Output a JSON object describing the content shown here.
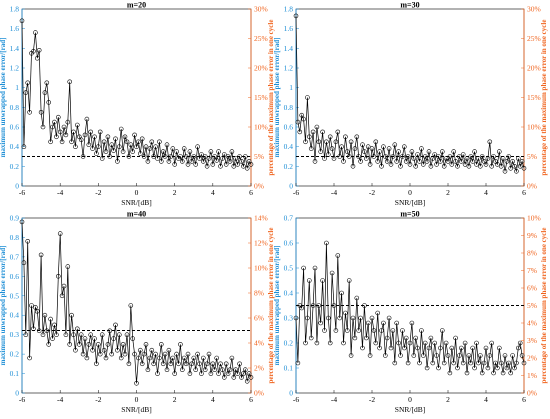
{
  "colors": {
    "left_axis": "#1f8fd6",
    "right_axis": "#f0641e",
    "series": "#000000",
    "threshold": "#000000"
  },
  "chart_data": [
    {
      "type": "line",
      "title": "m=20",
      "xlabel": "SNR/[dB]",
      "ylabel": "maximum unwrapped phase error/[rad]",
      "ylabel_right": "percentage of the maximum phase error in one cycle",
      "xlim": [
        -6,
        6
      ],
      "ylim": [
        0,
        1.8
      ],
      "ylim_right": [
        0,
        30
      ],
      "x_ticks": [
        "-6",
        "-4",
        "-2",
        "0",
        "2",
        "4",
        "6"
      ],
      "y_ticks": [
        "0",
        "0.2",
        "0.4",
        "0.6",
        "0.8",
        "1",
        "1.2",
        "1.4",
        "1.6",
        "1.8"
      ],
      "y_right_ticks": [
        "0%",
        "5%",
        "10%",
        "15%",
        "20%",
        "25%",
        "30%"
      ],
      "threshold_percent": 5,
      "grid": false,
      "x": [
        -6.0,
        -5.9,
        -5.8,
        -5.7,
        -5.6,
        -5.5,
        -5.4,
        -5.3,
        -5.2,
        -5.1,
        -5.0,
        -4.9,
        -4.8,
        -4.7,
        -4.6,
        -4.5,
        -4.4,
        -4.3,
        -4.2,
        -4.1,
        -4.0,
        -3.9,
        -3.8,
        -3.7,
        -3.6,
        -3.5,
        -3.4,
        -3.3,
        -3.2,
        -3.1,
        -3.0,
        -2.9,
        -2.8,
        -2.7,
        -2.6,
        -2.5,
        -2.4,
        -2.3,
        -2.2,
        -2.1,
        -2.0,
        -1.9,
        -1.8,
        -1.7,
        -1.6,
        -1.5,
        -1.4,
        -1.3,
        -1.2,
        -1.1,
        -1.0,
        -0.9,
        -0.8,
        -0.7,
        -0.6,
        -0.5,
        -0.4,
        -0.3,
        -0.2,
        -0.1,
        0.0,
        0.1,
        0.2,
        0.3,
        0.4,
        0.5,
        0.6,
        0.7,
        0.8,
        0.9,
        1.0,
        1.1,
        1.2,
        1.3,
        1.4,
        1.5,
        1.6,
        1.7,
        1.8,
        1.9,
        2.0,
        2.1,
        2.2,
        2.3,
        2.4,
        2.5,
        2.6,
        2.7,
        2.8,
        2.9,
        3.0,
        3.1,
        3.2,
        3.3,
        3.4,
        3.5,
        3.6,
        3.7,
        3.8,
        3.9,
        4.0,
        4.1,
        4.2,
        4.3,
        4.4,
        4.5,
        4.6,
        4.7,
        4.8,
        4.9,
        5.0,
        5.1,
        5.2,
        5.3,
        5.4,
        5.5,
        5.6,
        5.7,
        5.8,
        5.9,
        6.0
      ],
      "y": [
        1.68,
        0.4,
        0.95,
        1.05,
        0.75,
        1.35,
        1.37,
        1.56,
        1.3,
        1.38,
        0.75,
        0.6,
        0.95,
        1.05,
        0.85,
        0.45,
        0.6,
        0.65,
        0.5,
        0.7,
        0.55,
        0.45,
        0.6,
        0.52,
        0.65,
        1.06,
        0.45,
        0.55,
        0.4,
        0.62,
        0.5,
        0.47,
        0.3,
        0.52,
        0.68,
        0.42,
        0.55,
        0.38,
        0.5,
        0.33,
        0.4,
        0.55,
        0.28,
        0.45,
        0.35,
        0.5,
        0.3,
        0.42,
        0.36,
        0.48,
        0.25,
        0.4,
        0.58,
        0.35,
        0.5,
        0.45,
        0.3,
        0.42,
        0.35,
        0.52,
        0.4,
        0.45,
        0.33,
        0.48,
        0.3,
        0.4,
        0.25,
        0.38,
        0.45,
        0.3,
        0.4,
        0.28,
        0.45,
        0.25,
        0.35,
        0.3,
        0.42,
        0.25,
        0.3,
        0.38,
        0.22,
        0.35,
        0.28,
        0.3,
        0.25,
        0.38,
        0.3,
        0.22,
        0.35,
        0.25,
        0.3,
        0.22,
        0.4,
        0.28,
        0.32,
        0.25,
        0.3,
        0.2,
        0.28,
        0.35,
        0.22,
        0.3,
        0.26,
        0.35,
        0.2,
        0.28,
        0.32,
        0.22,
        0.3,
        0.25,
        0.35,
        0.2,
        0.28,
        0.22,
        0.3,
        0.25,
        0.2,
        0.3,
        0.18,
        0.25,
        0.22
      ]
    },
    {
      "type": "line",
      "title": "m=30",
      "xlabel": "SNR/[dB]",
      "ylabel": "maximum unwrapped phase error/[rad]",
      "ylabel_right": "percentage of the maximum phase error in one cycle",
      "xlim": [
        -6,
        6
      ],
      "ylim": [
        0,
        1.8
      ],
      "ylim_right": [
        0,
        30
      ],
      "x_ticks": [
        "-6",
        "-4",
        "-2",
        "0",
        "2",
        "4",
        "6"
      ],
      "y_ticks": [
        "0",
        "0.2",
        "0.4",
        "0.6",
        "0.8",
        "1",
        "1.2",
        "1.4",
        "1.6",
        "1.8"
      ],
      "y_right_ticks": [
        "0%",
        "5%",
        "10%",
        "15%",
        "20%",
        "25%",
        "30%"
      ],
      "threshold_percent": 5,
      "grid": false,
      "x": [
        -6.0,
        -5.9,
        -5.8,
        -5.7,
        -5.6,
        -5.5,
        -5.4,
        -5.3,
        -5.2,
        -5.1,
        -5.0,
        -4.9,
        -4.8,
        -4.7,
        -4.6,
        -4.5,
        -4.4,
        -4.3,
        -4.2,
        -4.1,
        -4.0,
        -3.9,
        -3.8,
        -3.7,
        -3.6,
        -3.5,
        -3.4,
        -3.3,
        -3.2,
        -3.1,
        -3.0,
        -2.9,
        -2.8,
        -2.7,
        -2.6,
        -2.5,
        -2.4,
        -2.3,
        -2.2,
        -2.1,
        -2.0,
        -1.9,
        -1.8,
        -1.7,
        -1.6,
        -1.5,
        -1.4,
        -1.3,
        -1.2,
        -1.1,
        -1.0,
        -0.9,
        -0.8,
        -0.7,
        -0.6,
        -0.5,
        -0.4,
        -0.3,
        -0.2,
        -0.1,
        0.0,
        0.1,
        0.2,
        0.3,
        0.4,
        0.5,
        0.6,
        0.7,
        0.8,
        0.9,
        1.0,
        1.1,
        1.2,
        1.3,
        1.4,
        1.5,
        1.6,
        1.7,
        1.8,
        1.9,
        2.0,
        2.1,
        2.2,
        2.3,
        2.4,
        2.5,
        2.6,
        2.7,
        2.8,
        2.9,
        3.0,
        3.1,
        3.2,
        3.3,
        3.4,
        3.5,
        3.6,
        3.7,
        3.8,
        3.9,
        4.0,
        4.1,
        4.2,
        4.3,
        4.4,
        4.5,
        4.6,
        4.7,
        4.8,
        4.9,
        5.0,
        5.1,
        5.2,
        5.3,
        5.4,
        5.5,
        5.6,
        5.7,
        5.8,
        5.9,
        6.0
      ],
      "y": [
        1.73,
        0.65,
        0.55,
        0.72,
        0.68,
        0.45,
        0.9,
        0.5,
        0.38,
        0.55,
        0.25,
        0.6,
        0.45,
        0.35,
        0.55,
        0.28,
        0.45,
        0.32,
        0.5,
        0.38,
        0.28,
        0.45,
        0.55,
        0.3,
        0.4,
        0.25,
        0.5,
        0.35,
        0.3,
        0.45,
        0.2,
        0.38,
        0.5,
        0.3,
        0.25,
        0.42,
        0.35,
        0.28,
        0.4,
        0.22,
        0.38,
        0.3,
        0.45,
        0.25,
        0.35,
        0.2,
        0.4,
        0.3,
        0.25,
        0.38,
        0.22,
        0.3,
        0.42,
        0.25,
        0.35,
        0.2,
        0.3,
        0.4,
        0.25,
        0.3,
        0.22,
        0.35,
        0.28,
        0.2,
        0.32,
        0.25,
        0.38,
        0.22,
        0.3,
        0.25,
        0.35,
        0.2,
        0.28,
        0.32,
        0.22,
        0.3,
        0.25,
        0.35,
        0.2,
        0.28,
        0.25,
        0.3,
        0.22,
        0.35,
        0.25,
        0.2,
        0.3,
        0.25,
        0.32,
        0.22,
        0.28,
        0.2,
        0.3,
        0.25,
        0.35,
        0.22,
        0.28,
        0.2,
        0.3,
        0.25,
        0.22,
        0.28,
        0.45,
        0.2,
        0.3,
        0.25,
        0.22,
        0.35,
        0.2,
        0.28,
        0.15,
        0.25,
        0.3,
        0.18,
        0.25,
        0.2,
        0.15,
        0.28,
        0.2,
        0.25,
        0.18
      ]
    },
    {
      "type": "line",
      "title": "m=40",
      "xlabel": "SNR/[dB]",
      "ylabel": "maximum unwrapped phase error/[rad]",
      "ylabel_right": "percentage of the maximum phase error in one cycle",
      "xlim": [
        -6,
        6
      ],
      "ylim": [
        0,
        0.9
      ],
      "ylim_right": [
        0,
        14
      ],
      "x_ticks": [
        "-6",
        "-4",
        "-2",
        "0",
        "2",
        "4",
        "6"
      ],
      "y_ticks": [
        "0",
        "0.1",
        "0.2",
        "0.3",
        "0.4",
        "0.5",
        "0.6",
        "0.7",
        "0.8",
        "0.9"
      ],
      "y_right_ticks": [
        "0%",
        "2%",
        "4%",
        "6%",
        "8%",
        "10%",
        "12%",
        "14%"
      ],
      "threshold_percent": 5,
      "grid": false,
      "x": [
        -6.0,
        -5.9,
        -5.8,
        -5.7,
        -5.6,
        -5.5,
        -5.4,
        -5.3,
        -5.2,
        -5.1,
        -5.0,
        -4.9,
        -4.8,
        -4.7,
        -4.6,
        -4.5,
        -4.4,
        -4.3,
        -4.2,
        -4.1,
        -4.0,
        -3.9,
        -3.8,
        -3.7,
        -3.6,
        -3.5,
        -3.4,
        -3.3,
        -3.2,
        -3.1,
        -3.0,
        -2.9,
        -2.8,
        -2.7,
        -2.6,
        -2.5,
        -2.4,
        -2.3,
        -2.2,
        -2.1,
        -2.0,
        -1.9,
        -1.8,
        -1.7,
        -1.6,
        -1.5,
        -1.4,
        -1.3,
        -1.2,
        -1.1,
        -1.0,
        -0.9,
        -0.8,
        -0.7,
        -0.6,
        -0.5,
        -0.4,
        -0.3,
        -0.2,
        -0.1,
        0.0,
        0.1,
        0.2,
        0.3,
        0.4,
        0.5,
        0.6,
        0.7,
        0.8,
        0.9,
        1.0,
        1.1,
        1.2,
        1.3,
        1.4,
        1.5,
        1.6,
        1.7,
        1.8,
        1.9,
        2.0,
        2.1,
        2.2,
        2.3,
        2.4,
        2.5,
        2.6,
        2.7,
        2.8,
        2.9,
        3.0,
        3.1,
        3.2,
        3.3,
        3.4,
        3.5,
        3.6,
        3.7,
        3.8,
        3.9,
        4.0,
        4.1,
        4.2,
        4.3,
        4.4,
        4.5,
        4.6,
        4.7,
        4.8,
        4.9,
        5.0,
        5.1,
        5.2,
        5.3,
        5.4,
        5.5,
        5.6,
        5.7,
        5.8,
        5.9,
        6.0
      ],
      "y": [
        0.88,
        0.67,
        0.3,
        0.78,
        0.18,
        0.45,
        0.33,
        0.44,
        0.42,
        0.32,
        0.71,
        0.3,
        0.4,
        0.32,
        0.25,
        0.38,
        0.28,
        0.35,
        0.3,
        0.6,
        0.82,
        0.5,
        0.55,
        0.3,
        0.65,
        0.25,
        0.4,
        0.3,
        0.22,
        0.33,
        0.25,
        0.3,
        0.2,
        0.28,
        0.18,
        0.25,
        0.3,
        0.22,
        0.28,
        0.15,
        0.25,
        0.2,
        0.3,
        0.22,
        0.18,
        0.25,
        0.32,
        0.2,
        0.28,
        0.35,
        0.22,
        0.3,
        0.18,
        0.25,
        0.2,
        0.3,
        0.15,
        0.45,
        0.28,
        0.2,
        0.05,
        0.18,
        0.22,
        0.15,
        0.2,
        0.25,
        0.12,
        0.18,
        0.22,
        0.15,
        0.2,
        0.1,
        0.18,
        0.25,
        0.15,
        0.2,
        0.12,
        0.22,
        0.15,
        0.18,
        0.1,
        0.2,
        0.15,
        0.25,
        0.12,
        0.18,
        0.15,
        0.2,
        0.1,
        0.15,
        0.18,
        0.12,
        0.2,
        0.15,
        0.1,
        0.18,
        0.12,
        0.15,
        0.2,
        0.1,
        0.15,
        0.12,
        0.18,
        0.1,
        0.15,
        0.12,
        0.08,
        0.15,
        0.1,
        0.12,
        0.18,
        0.08,
        0.12,
        0.1,
        0.15,
        0.08,
        0.1,
        0.12,
        0.06,
        0.1,
        0.08
      ]
    },
    {
      "type": "line",
      "title": "m=50",
      "xlabel": "SNR/[dB]",
      "ylabel": "maximum unwrapped phase error/[rad]",
      "ylabel_right": "percentage of the maximum phase error in one cycle",
      "xlim": [
        -6,
        6
      ],
      "ylim": [
        0,
        0.7
      ],
      "ylim_right": [
        0,
        10
      ],
      "x_ticks": [
        "-6",
        "-4",
        "-2",
        "0",
        "2",
        "4",
        "6"
      ],
      "y_ticks": [
        "0",
        "0.1",
        "0.2",
        "0.3",
        "0.4",
        "0.5",
        "0.6",
        "0.7"
      ],
      "y_right_ticks": [
        "0%",
        "1%",
        "2%",
        "3%",
        "4%",
        "5%",
        "6%",
        "7%",
        "8%",
        "9%",
        "10%"
      ],
      "threshold_percent": 5,
      "grid": false,
      "x": [
        -6.0,
        -5.9,
        -5.8,
        -5.7,
        -5.6,
        -5.5,
        -5.4,
        -5.3,
        -5.2,
        -5.1,
        -5.0,
        -4.9,
        -4.8,
        -4.7,
        -4.6,
        -4.5,
        -4.4,
        -4.3,
        -4.2,
        -4.1,
        -4.0,
        -3.9,
        -3.8,
        -3.7,
        -3.6,
        -3.5,
        -3.4,
        -3.3,
        -3.2,
        -3.1,
        -3.0,
        -2.9,
        -2.8,
        -2.7,
        -2.6,
        -2.5,
        -2.4,
        -2.3,
        -2.2,
        -2.1,
        -2.0,
        -1.9,
        -1.8,
        -1.7,
        -1.6,
        -1.5,
        -1.4,
        -1.3,
        -1.2,
        -1.1,
        -1.0,
        -0.9,
        -0.8,
        -0.7,
        -0.6,
        -0.5,
        -0.4,
        -0.3,
        -0.2,
        -0.1,
        0.0,
        0.1,
        0.2,
        0.3,
        0.4,
        0.5,
        0.6,
        0.7,
        0.8,
        0.9,
        1.0,
        1.1,
        1.2,
        1.3,
        1.4,
        1.5,
        1.6,
        1.7,
        1.8,
        1.9,
        2.0,
        2.1,
        2.2,
        2.3,
        2.4,
        2.5,
        2.6,
        2.7,
        2.8,
        2.9,
        3.0,
        3.1,
        3.2,
        3.3,
        3.4,
        3.5,
        3.6,
        3.7,
        3.8,
        3.9,
        4.0,
        4.1,
        4.2,
        4.3,
        4.4,
        4.5,
        4.6,
        4.7,
        4.8,
        4.9,
        5.0,
        5.1,
        5.2,
        5.3,
        5.4,
        5.5,
        5.6,
        5.7,
        5.8,
        5.9,
        6.0
      ],
      "y": [
        0.3,
        0.12,
        0.35,
        0.34,
        0.5,
        0.2,
        0.3,
        0.45,
        0.22,
        0.35,
        0.5,
        0.2,
        0.35,
        0.28,
        0.45,
        0.25,
        0.6,
        0.3,
        0.2,
        0.48,
        0.35,
        0.25,
        0.55,
        0.3,
        0.4,
        0.2,
        0.32,
        0.25,
        0.45,
        0.15,
        0.3,
        0.22,
        0.38,
        0.25,
        0.3,
        0.18,
        0.35,
        0.22,
        0.28,
        0.15,
        0.3,
        0.25,
        0.2,
        0.32,
        0.18,
        0.25,
        0.28,
        0.15,
        0.22,
        0.3,
        0.18,
        0.25,
        0.12,
        0.28,
        0.2,
        0.15,
        0.25,
        0.18,
        0.22,
        0.12,
        0.2,
        0.28,
        0.15,
        0.22,
        0.18,
        0.12,
        0.25,
        0.15,
        0.2,
        0.1,
        0.18,
        0.22,
        0.12,
        0.2,
        0.15,
        0.1,
        0.18,
        0.25,
        0.12,
        0.2,
        0.15,
        0.08,
        0.18,
        0.12,
        0.22,
        0.1,
        0.15,
        0.18,
        0.12,
        0.2,
        0.08,
        0.15,
        0.12,
        0.18,
        0.1,
        0.2,
        0.12,
        0.15,
        0.08,
        0.12,
        0.18,
        0.1,
        0.15,
        0.2,
        0.08,
        0.12,
        0.1,
        0.18,
        0.12,
        0.08,
        0.15,
        0.1,
        0.12,
        0.08,
        0.15,
        0.1,
        0.12,
        0.18,
        0.2,
        0.15,
        0.12
      ]
    }
  ]
}
